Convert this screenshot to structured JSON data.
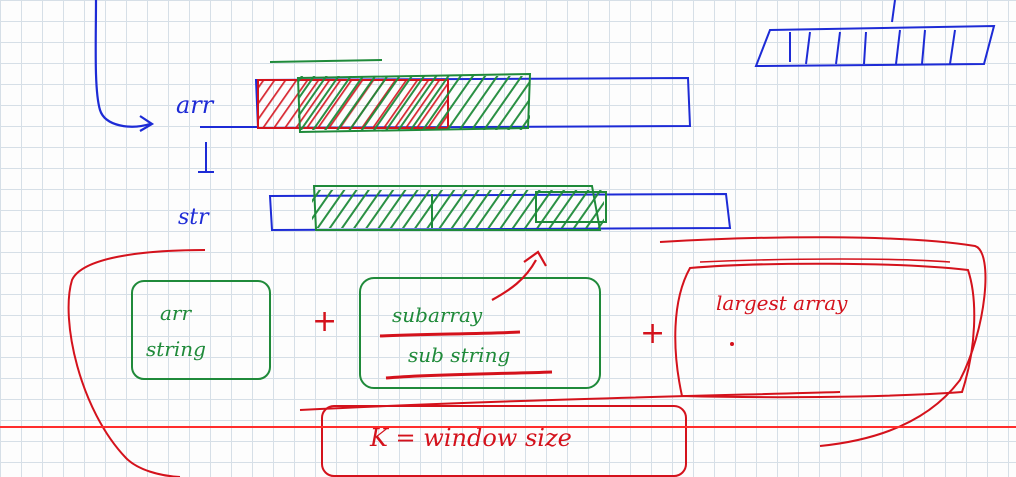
{
  "labels": {
    "arr": "arr",
    "str": "str",
    "box_arr_string": [
      "arr",
      "string"
    ],
    "box_sub": [
      "subarray",
      "sub string"
    ],
    "box_largest": "largest  array",
    "plus": "+",
    "formula": "K = window size"
  },
  "colors": {
    "ink_blue": "#1d2bd6",
    "ink_green": "#1f8a3a",
    "ink_red": "#d4121c"
  },
  "player": {
    "progress": 1.0
  }
}
